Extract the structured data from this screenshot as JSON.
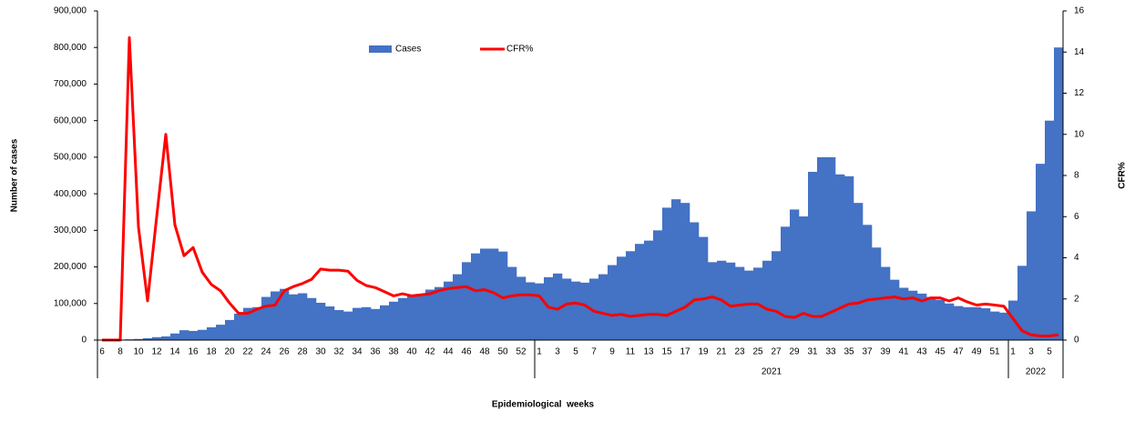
{
  "chart_data": {
    "type": "bar",
    "y_label": "Number of cases",
    "y2_label": "CFR%",
    "x_label": "Epidemiological  weeks",
    "legend": "top",
    "categories": [
      "6",
      null,
      "8",
      null,
      "10",
      null,
      "12",
      null,
      "14",
      null,
      "16",
      null,
      "18",
      null,
      "20",
      null,
      "22",
      null,
      "24",
      null,
      "26",
      null,
      "28",
      null,
      "30",
      null,
      "32",
      null,
      "34",
      null,
      "36",
      null,
      "38",
      null,
      "40",
      null,
      "42",
      null,
      "44",
      null,
      "46",
      null,
      "48",
      null,
      "50",
      null,
      "52",
      null,
      "1",
      null,
      "3",
      null,
      "5",
      null,
      "7",
      null,
      "9",
      null,
      "11",
      null,
      "13",
      null,
      "15",
      null,
      "17",
      null,
      "19",
      null,
      "21",
      null,
      "23",
      null,
      "25",
      null,
      "27",
      null,
      "29",
      null,
      "31",
      null,
      "33",
      null,
      "35",
      null,
      "37",
      null,
      "39",
      null,
      "41",
      null,
      "43",
      null,
      "45",
      null,
      "47",
      null,
      "49",
      null,
      "51",
      null,
      "1",
      null,
      "3",
      null,
      "5",
      null
    ],
    "groups": [
      {
        "label": null,
        "count": 48
      },
      {
        "label": "2021",
        "count": 52
      },
      {
        "label": "2022",
        "count": 6
      }
    ],
    "series": [
      {
        "name": "Cases",
        "color": "#4472c4",
        "type": "bar",
        "values": [
          0,
          0,
          0,
          2000,
          3000,
          5000,
          8000,
          10000,
          18000,
          27000,
          25000,
          28000,
          35000,
          42000,
          55000,
          72000,
          88000,
          90000,
          118000,
          133000,
          140000,
          125000,
          128000,
          115000,
          102000,
          92000,
          82000,
          78000,
          88000,
          90000,
          85000,
          95000,
          105000,
          115000,
          120000,
          125000,
          138000,
          145000,
          160000,
          180000,
          213000,
          237000,
          250000,
          250000,
          242000,
          200000,
          173000,
          158000,
          155000,
          172000,
          182000,
          168000,
          160000,
          157000,
          168000,
          180000,
          205000,
          228000,
          243000,
          263000,
          272000,
          300000,
          362000,
          385000,
          375000,
          322000,
          282000,
          213000,
          217000,
          212000,
          200000,
          190000,
          198000,
          217000,
          243000,
          310000,
          357000,
          338000,
          460000,
          500000,
          500000,
          453000,
          448000,
          375000,
          315000,
          253000,
          200000,
          165000,
          143000,
          135000,
          127000,
          118000,
          110000,
          100000,
          93000,
          90000,
          90000,
          87000,
          78000,
          75000,
          108000,
          203000,
          352000,
          482000,
          600000,
          800000
        ]
      },
      {
        "name": "CFR%",
        "color": "#ff0000",
        "type": "line",
        "axis": "y2",
        "values": [
          0,
          0,
          0,
          14.7,
          5.5,
          1.9,
          6,
          10,
          5.6,
          4.1,
          4.5,
          3.3,
          2.7,
          2.4,
          1.8,
          1.3,
          1.3,
          1.5,
          1.65,
          1.7,
          2.4,
          2.6,
          2.75,
          2.95,
          3.45,
          3.4,
          3.4,
          3.35,
          2.9,
          2.65,
          2.55,
          2.35,
          2.15,
          2.25,
          2.15,
          2.2,
          2.25,
          2.4,
          2.5,
          2.55,
          2.6,
          2.4,
          2.45,
          2.3,
          2.05,
          2.15,
          2.2,
          2.2,
          2.15,
          1.6,
          1.5,
          1.75,
          1.8,
          1.7,
          1.4,
          1.3,
          1.2,
          1.25,
          1.15,
          1.2,
          1.25,
          1.25,
          1.2,
          1.4,
          1.6,
          1.95,
          2.0,
          2.1,
          1.95,
          1.65,
          1.7,
          1.75,
          1.75,
          1.5,
          1.4,
          1.15,
          1.1,
          1.3,
          1.15,
          1.15,
          1.35,
          1.55,
          1.75,
          1.8,
          1.95,
          2.0,
          2.05,
          2.1,
          2.0,
          2.05,
          1.9,
          2.05,
          2.05,
          1.9,
          2.05,
          1.85,
          1.7,
          1.75,
          1.7,
          1.65,
          1.05,
          0.45,
          0.25,
          0.2,
          0.2,
          0.25
        ]
      }
    ],
    "ylim": [
      0,
      900000
    ],
    "yticks": [
      0,
      {
        "value": 100000,
        "label": "100,000"
      },
      {
        "value": 200000,
        "label": "200,000"
      },
      {
        "value": 300000,
        "label": "300,000"
      },
      {
        "value": 400000,
        "label": "400,000"
      },
      {
        "value": 500000,
        "label": "500,000"
      },
      {
        "value": 600000,
        "label": "600,000"
      },
      {
        "value": 700000,
        "label": "700,000"
      },
      {
        "value": 800000,
        "label": "800,000"
      },
      {
        "value": 900000,
        "label": "900,000"
      }
    ],
    "y2lim": [
      0,
      16
    ],
    "y2ticks": [
      0,
      2,
      4,
      6,
      8,
      10,
      12,
      14,
      16
    ]
  }
}
